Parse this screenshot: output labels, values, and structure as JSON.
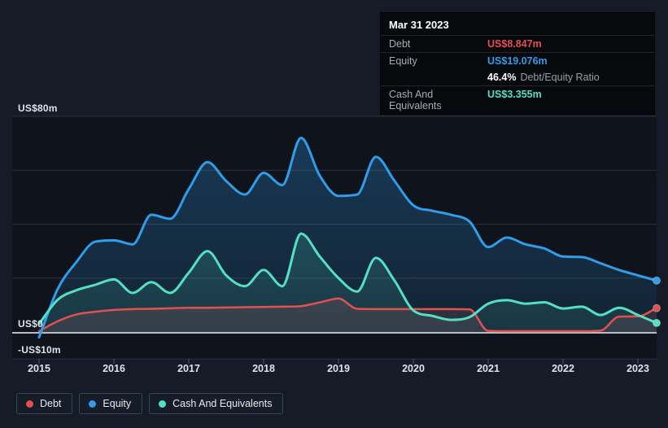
{
  "page": {
    "background": "#161c27"
  },
  "tooltip": {
    "date": "Mar 31 2023",
    "debt_label": "Debt",
    "debt_value": "US$8.847m",
    "equity_label": "Equity",
    "equity_value": "US$19.076m",
    "ratio_value": "46.4%",
    "ratio_label": "Debt/Equity Ratio",
    "cash_label": "Cash And Equivalents",
    "cash_value": "US$3.355m"
  },
  "legend": {
    "items": [
      {
        "label": "Debt",
        "color": "#e2514f"
      },
      {
        "label": "Equity",
        "color": "#2f9de8"
      },
      {
        "label": "Cash And Equivalents",
        "color": "#53e0c5"
      }
    ]
  },
  "chart_data": {
    "type": "area",
    "title": "",
    "xlabel": "",
    "ylabel": "US$ millions",
    "x_tick_labels": [
      "2015",
      "2016",
      "2017",
      "2018",
      "2019",
      "2020",
      "2021",
      "2022",
      "2023"
    ],
    "y_tick_labels": [
      "US$80m",
      "US$0",
      "-US$10m"
    ],
    "ylim": [
      -10,
      80
    ],
    "x_range": [
      2015,
      2023.25
    ],
    "grid_values": [
      80,
      60,
      40,
      20,
      0,
      -10
    ],
    "legend_position": "bottom",
    "x": [
      2015,
      2015.25,
      2015.5,
      2015.75,
      2016,
      2016.25,
      2016.5,
      2016.75,
      2017,
      2017.25,
      2017.5,
      2017.75,
      2018,
      2018.25,
      2018.5,
      2018.75,
      2019,
      2019.25,
      2019.5,
      2019.75,
      2020,
      2020.25,
      2020.5,
      2020.75,
      2021,
      2021.25,
      2021.5,
      2021.75,
      2022,
      2022.25,
      2022.5,
      2022.75,
      2023,
      2023.25
    ],
    "series": [
      {
        "name": "Debt",
        "color": "#e2514f",
        "values": [
          0.3,
          4,
          6.5,
          7.5,
          8.2,
          8.5,
          8.6,
          8.8,
          9,
          9,
          9.1,
          9.2,
          9.3,
          9.4,
          9.6,
          11,
          12.4,
          8.6,
          8.5,
          8.5,
          8.5,
          8.5,
          8.5,
          8.4,
          0.4,
          0.3,
          0.3,
          0.3,
          0.3,
          0.3,
          0.5,
          5.7,
          5.8,
          8.847
        ]
      },
      {
        "name": "Equity",
        "color": "#2f9de8",
        "values": [
          -2,
          16,
          26,
          33.5,
          34,
          32.5,
          43.5,
          42,
          53,
          63,
          56,
          51,
          59,
          54.5,
          72,
          58,
          50.5,
          51,
          65,
          56,
          47,
          45,
          43.5,
          41,
          31.5,
          35,
          32.5,
          31,
          28,
          27.8,
          25.5,
          23,
          21,
          19.076
        ]
      },
      {
        "name": "Cash And Equivalents",
        "color": "#53e0c5",
        "values": [
          3,
          12,
          15.5,
          17.5,
          19.5,
          14.5,
          18.5,
          14.5,
          22,
          30,
          21,
          17,
          23,
          17,
          36.5,
          28,
          20,
          15,
          27.5,
          19,
          8,
          6,
          4.5,
          5.5,
          10.5,
          11.8,
          10.5,
          11,
          8.7,
          9.4,
          6.3,
          9,
          6.3,
          3.355
        ]
      }
    ]
  }
}
